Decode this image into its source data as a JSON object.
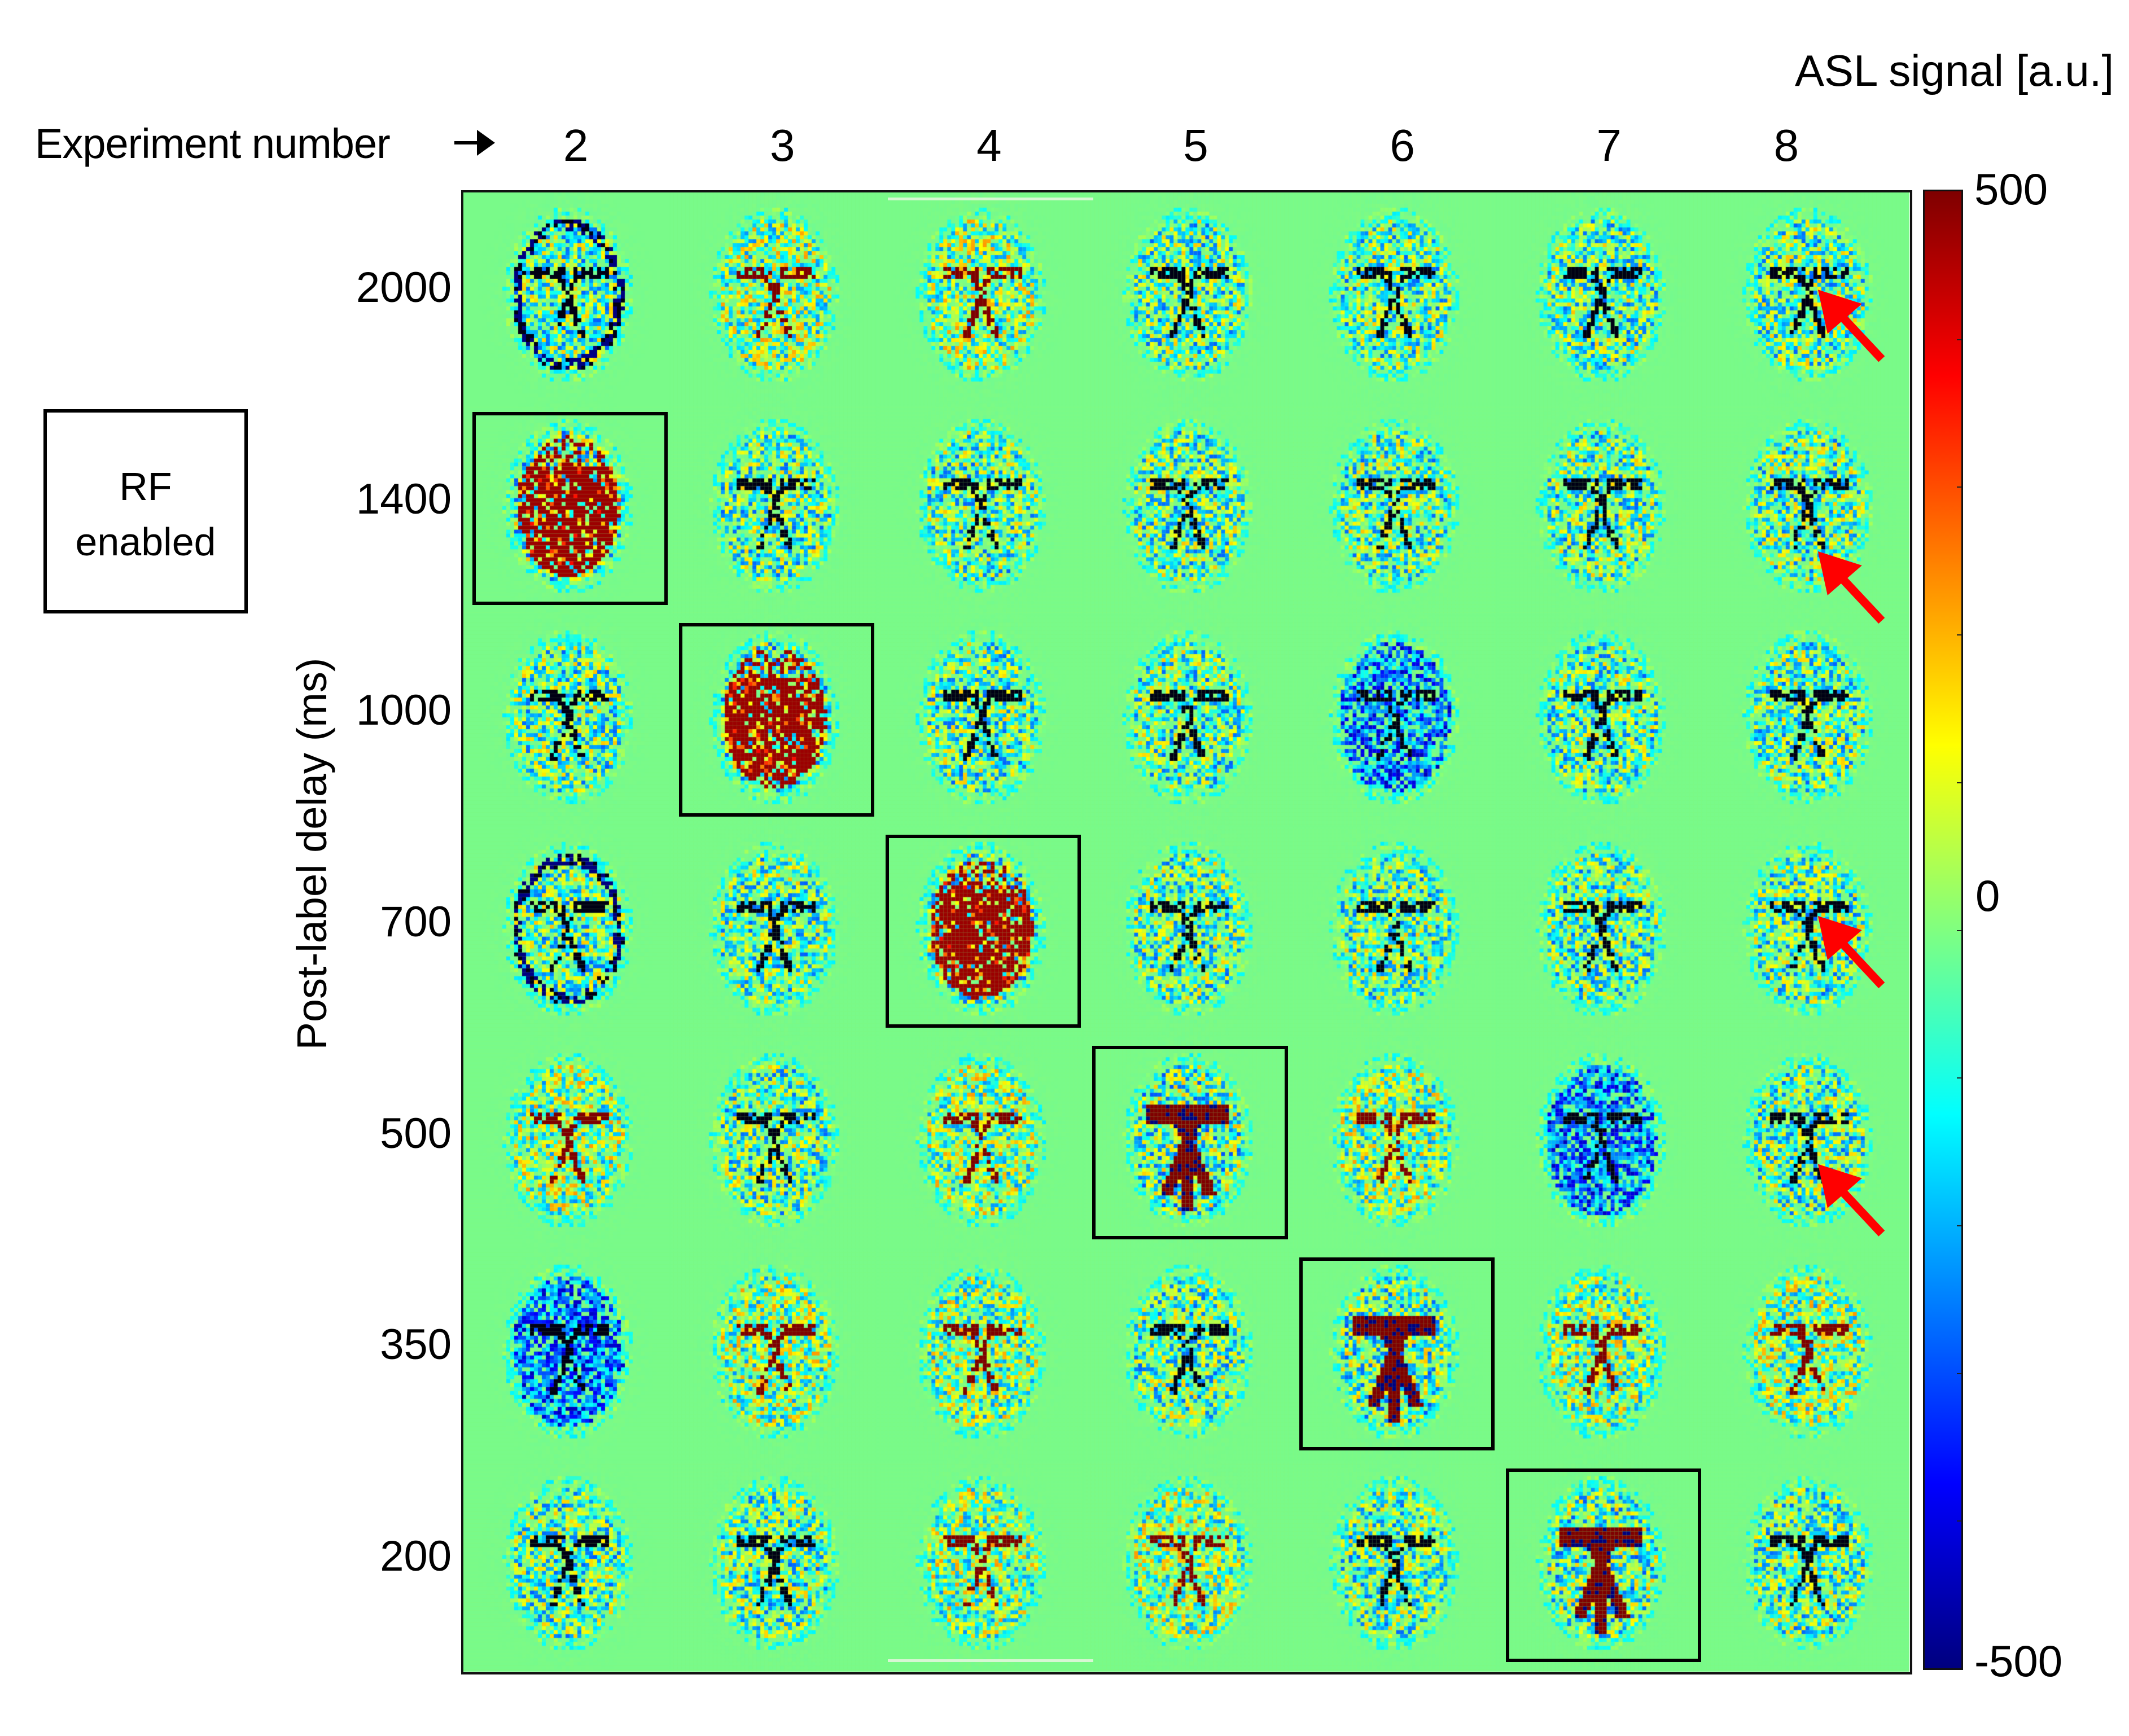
{
  "figure": {
    "x_axis_title": "Experiment number",
    "x_axis_arrow": "right-arrow-icon",
    "y_axis_title": "Post-label delay  (ms)",
    "legend_box": {
      "line1": "RF",
      "line2": "enabled"
    },
    "colorbar": {
      "title": "ASL signal [a.u.]",
      "max_label": "500",
      "mid_label": "0",
      "min_label": "-500",
      "colormap": "jet",
      "range": [
        -500,
        500
      ],
      "stops": [
        "#7f0000",
        "#ff0000",
        "#ff8000",
        "#ffff00",
        "#80ff80",
        "#00ffff",
        "#0080ff",
        "#0000ff",
        "#00007f"
      ]
    },
    "background_value_color": "#8cf878",
    "annotation_color": "#ff0000",
    "highlight_box_color": "#000000"
  },
  "chart_data": {
    "type": "heatmap",
    "title": "",
    "xlabel": "Experiment number",
    "ylabel": "Post-label delay (ms)",
    "colorbar_label": "ASL signal [a.u.]",
    "color_range": [
      -500,
      500
    ],
    "columns": [
      "2",
      "3",
      "4",
      "5",
      "6",
      "7",
      "8"
    ],
    "rows": [
      "2000",
      "1400",
      "1000",
      "700",
      "500",
      "350",
      "200"
    ],
    "highlighted_cells": [
      {
        "row": "1400",
        "col": "2",
        "label": "RF enabled"
      },
      {
        "row": "1000",
        "col": "3",
        "label": "RF enabled"
      },
      {
        "row": "700",
        "col": "4",
        "label": "RF enabled"
      },
      {
        "row": "500",
        "col": "5",
        "label": "RF enabled"
      },
      {
        "row": "350",
        "col": "6",
        "label": "RF enabled"
      },
      {
        "row": "200",
        "col": "7",
        "label": "RF enabled"
      }
    ],
    "arrow_annotations": [
      {
        "row": "2000",
        "col": "8"
      },
      {
        "row": "1400",
        "col": "8"
      },
      {
        "row": "700",
        "col": "8"
      },
      {
        "row": "500",
        "col": "8"
      }
    ],
    "cells": [
      [
        "mixed-negative-rim",
        "positive-vessels",
        "positive-vessels",
        "mixed",
        "mixed",
        "negative-vessels",
        "negative-vessels"
      ],
      [
        "strong-positive-whole",
        "mixed",
        "mixed-negative",
        "negative-vessels",
        "negative-vessels",
        "mixed",
        "negative-vessels"
      ],
      [
        "mixed-negative",
        "strong-positive-whole",
        "negative-vessels",
        "mixed",
        "negative-whole",
        "mixed",
        "mixed"
      ],
      [
        "negative-rim",
        "mixed",
        "strong-positive-whole",
        "mixed",
        "negative-vessels",
        "mixed",
        "negative-vessels"
      ],
      [
        "mixed-positive",
        "mixed",
        "positive-vessels",
        "strong-positive-vessels",
        "positive-vessels",
        "negative-whole",
        "negative-vessels"
      ],
      [
        "negative-whole",
        "positive-vessels",
        "positive-vessels",
        "mixed",
        "strong-positive-vessels",
        "positive-vessels",
        "positive-vessels"
      ],
      [
        "mixed",
        "mixed-negative",
        "positive-vessels",
        "positive-vessels",
        "mixed",
        "strong-positive-vessels",
        "mixed"
      ]
    ]
  }
}
